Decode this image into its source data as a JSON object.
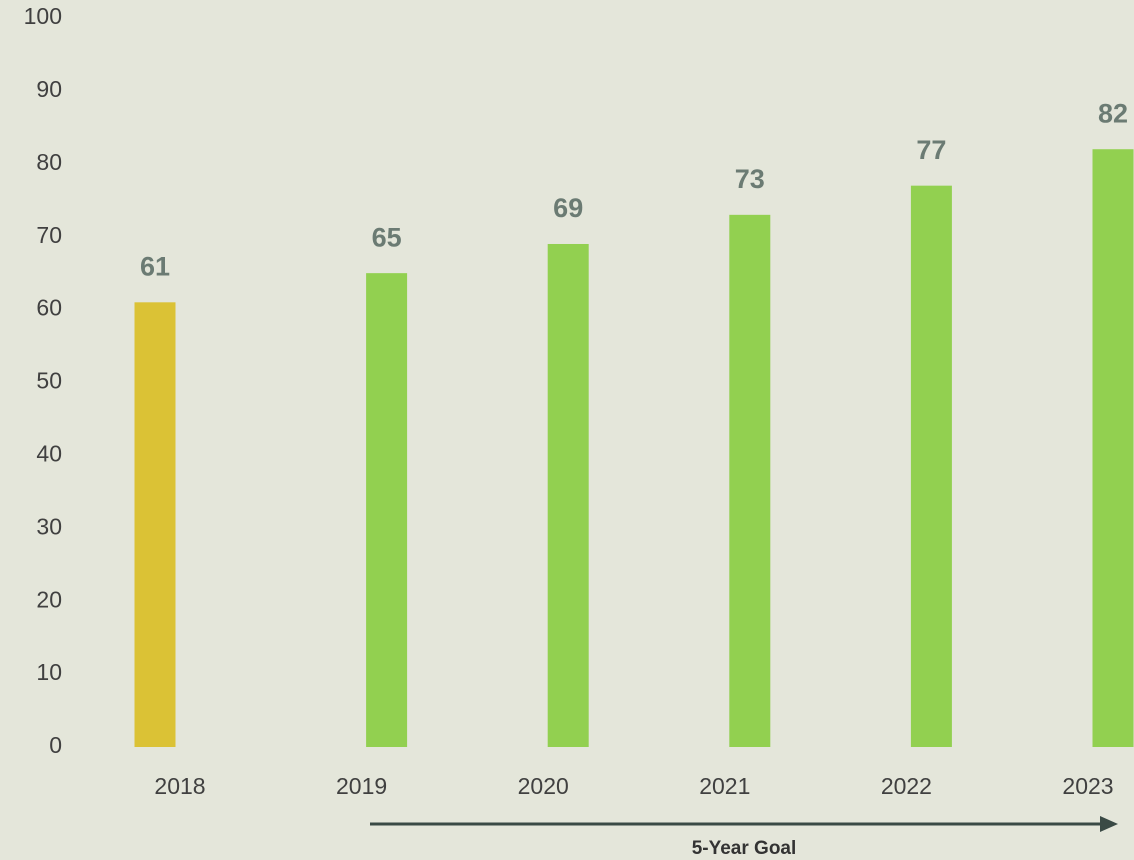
{
  "chart_data": {
    "type": "bar",
    "categories": [
      "2018",
      "2019",
      "2020",
      "2021",
      "2022",
      "2023"
    ],
    "series": [
      {
        "color": "#dbc235",
        "values": [
          61,
          null,
          null,
          null,
          null,
          null
        ]
      },
      {
        "color": "#92d050",
        "values": [
          null,
          65,
          69,
          73,
          77,
          82
        ]
      }
    ],
    "ylim": [
      0,
      100
    ],
    "yticks": [
      0,
      10,
      20,
      30,
      40,
      50,
      60,
      70,
      80,
      90,
      100
    ],
    "grid": false,
    "value_label_color": "#6b7b73",
    "annotation": "5-Year Goal",
    "annotation_color": "#3a4a45"
  }
}
